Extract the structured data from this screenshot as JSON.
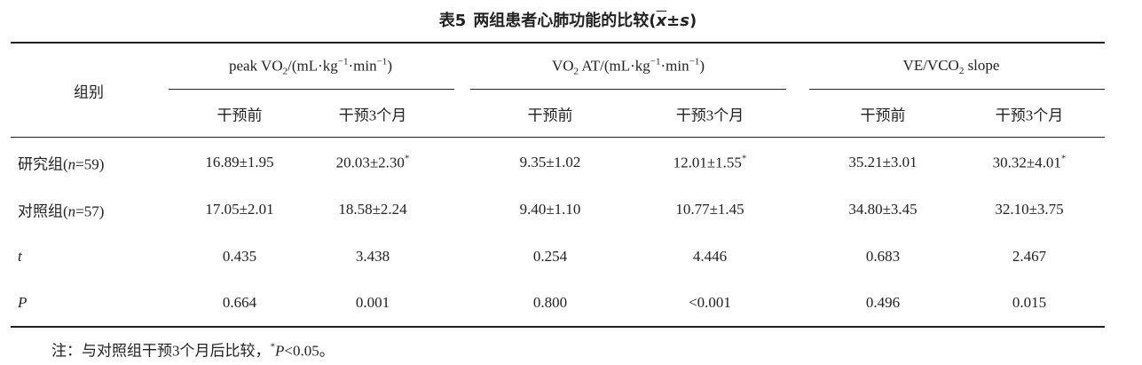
{
  "title": [
    {
      "text": "表5"
    },
    {
      "text": "两组患者心肺功能的比较("
    },
    {
      "text": "x",
      "style": "overline"
    },
    {
      "text": "±"
    },
    {
      "text": "s",
      "style": "italic"
    },
    {
      "text": ")"
    }
  ],
  "table": {
    "corner": "组别",
    "groups": [
      [
        {
          "text": "peak VO"
        },
        {
          "text": "2",
          "style": "sub"
        },
        {
          "text": "/(mL·kg"
        },
        {
          "text": "−1",
          "style": "sup"
        },
        {
          "text": "·min"
        },
        {
          "text": "−1",
          "style": "sup"
        },
        {
          "text": ")"
        }
      ],
      [
        {
          "text": "VO"
        },
        {
          "text": "2",
          "style": "sub"
        },
        {
          "text": " AT/(mL·kg"
        },
        {
          "text": "−1",
          "style": "sup"
        },
        {
          "text": "·min"
        },
        {
          "text": "−1",
          "style": "sup"
        },
        {
          "text": ")"
        }
      ],
      [
        {
          "text": "VE/VCO"
        },
        {
          "text": "2",
          "style": "sub"
        },
        {
          "text": " slope"
        }
      ]
    ],
    "subheaders": [
      "干预前",
      "干预3个月",
      "干预前",
      "干预3个月",
      "干预前",
      "干预3个月"
    ],
    "rows": [
      {
        "label": [
          {
            "text": "研究组("
          },
          {
            "text": "n",
            "style": "italic"
          },
          {
            "text": "=59)"
          }
        ],
        "cells": [
          [
            {
              "text": "16.89±1.95"
            }
          ],
          [
            {
              "text": "20.03±2.30"
            },
            {
              "text": "*",
              "style": "sup"
            }
          ],
          [
            {
              "text": "9.35±1.02"
            }
          ],
          [
            {
              "text": "12.01±1.55"
            },
            {
              "text": "*",
              "style": "sup"
            }
          ],
          [
            {
              "text": "35.21±3.01"
            }
          ],
          [
            {
              "text": "30.32±4.01"
            },
            {
              "text": "*",
              "style": "sup"
            }
          ]
        ]
      },
      {
        "label": [
          {
            "text": "对照组("
          },
          {
            "text": "n",
            "style": "italic"
          },
          {
            "text": "=57)"
          }
        ],
        "cells": [
          [
            {
              "text": "17.05±2.01"
            }
          ],
          [
            {
              "text": "18.58±2.24"
            }
          ],
          [
            {
              "text": "9.40±1.10"
            }
          ],
          [
            {
              "text": "10.77±1.45"
            }
          ],
          [
            {
              "text": "34.80±3.45"
            }
          ],
          [
            {
              "text": "32.10±3.75"
            }
          ]
        ]
      },
      {
        "label": [
          {
            "text": "t",
            "style": "italic"
          }
        ],
        "cells": [
          [
            {
              "text": "0.435"
            }
          ],
          [
            {
              "text": "3.438"
            }
          ],
          [
            {
              "text": "0.254"
            }
          ],
          [
            {
              "text": "4.446"
            }
          ],
          [
            {
              "text": "0.683"
            }
          ],
          [
            {
              "text": "2.467"
            }
          ]
        ]
      },
      {
        "label": [
          {
            "text": "P",
            "style": "italic"
          }
        ],
        "cells": [
          [
            {
              "text": "0.664"
            }
          ],
          [
            {
              "text": "0.001"
            }
          ],
          [
            {
              "text": "0.800"
            }
          ],
          [
            {
              "text": "<0.001"
            }
          ],
          [
            {
              "text": "0.496"
            }
          ],
          [
            {
              "text": "0.015"
            }
          ]
        ]
      }
    ]
  },
  "note": [
    {
      "text": "注：与对照组干预3个月后比较，"
    },
    {
      "text": "*",
      "style": "sup"
    },
    {
      "text": "P",
      "style": "italic"
    },
    {
      "text": "<0.05。"
    }
  ]
}
